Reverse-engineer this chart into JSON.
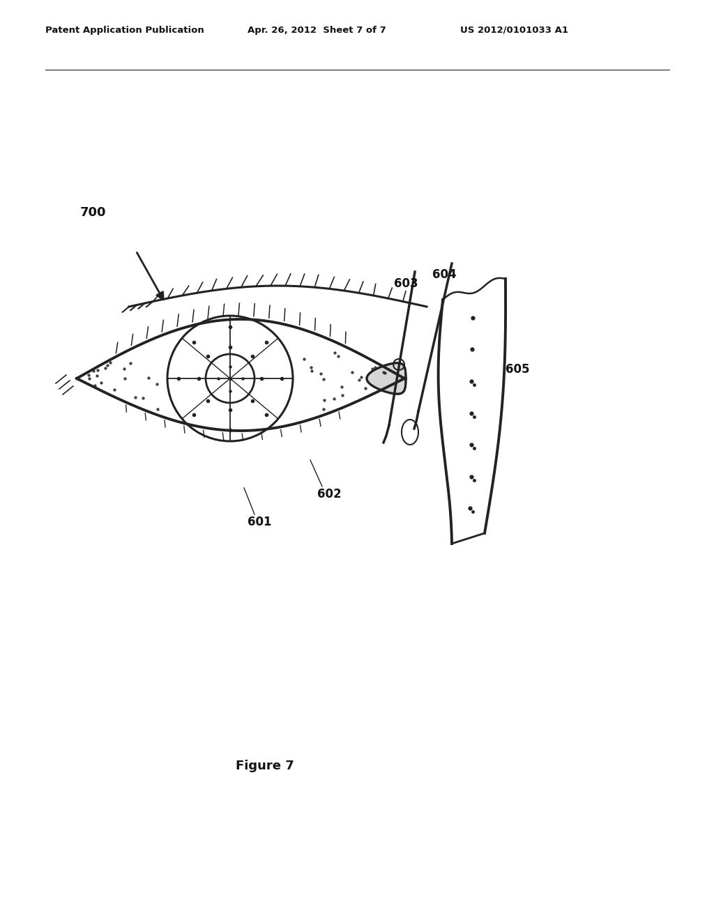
{
  "bg_color": "#ffffff",
  "header_left": "Patent Application Publication",
  "header_center": "Apr. 26, 2012  Sheet 7 of 7",
  "header_right": "US 2012/0101033 A1",
  "figure_label": "Figure 7",
  "ref_700": "700",
  "ref_601": "601",
  "ref_602": "602",
  "ref_603": "603",
  "ref_604": "604",
  "ref_605": "605",
  "line_color": "#222222",
  "text_color": "#111111"
}
